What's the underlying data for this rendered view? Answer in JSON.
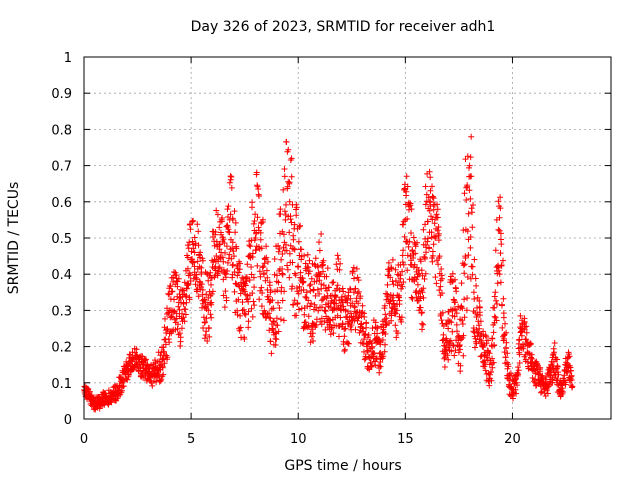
{
  "chart_data": {
    "type": "scatter",
    "title": "Day 326 of 2023, SRMTID for receiver adh1",
    "xlabel": "GPS time / hours",
    "ylabel": "SRMTID / TECUs",
    "xlim": [
      0,
      24.6
    ],
    "ylim": [
      0,
      1
    ],
    "xticks": [
      0,
      5,
      10,
      15,
      20
    ],
    "xtick_labels": [
      "0",
      "5",
      "10",
      "15",
      "20"
    ],
    "yticks": [
      0,
      0.1,
      0.2,
      0.3,
      0.4,
      0.5,
      0.6,
      0.7,
      0.8,
      0.9,
      1
    ],
    "ytick_labels": [
      "0",
      "0.1",
      "0.2",
      "0.3",
      "0.4",
      "0.5",
      "0.6",
      "0.7",
      "0.8",
      "0.9",
      "1"
    ],
    "grid": true,
    "marker": "+",
    "series": [
      {
        "name": "adh1",
        "color": "#ff0000",
        "x": [
          0.0,
          0.2,
          0.4,
          0.6,
          0.8,
          1.0,
          1.2,
          1.4,
          1.6,
          1.8,
          2.0,
          2.2,
          2.4,
          2.6,
          2.8,
          3.0,
          3.2,
          3.4,
          3.6,
          3.8,
          4.0,
          4.2,
          4.4,
          4.6,
          4.8,
          5.0,
          5.2,
          5.4,
          5.6,
          5.8,
          6.0,
          6.2,
          6.4,
          6.6,
          6.8,
          7.0,
          7.2,
          7.4,
          7.6,
          7.8,
          8.0,
          8.2,
          8.4,
          8.6,
          8.8,
          9.0,
          9.2,
          9.4,
          9.6,
          9.8,
          10.0,
          10.2,
          10.4,
          10.6,
          10.8,
          11.0,
          11.2,
          11.4,
          11.6,
          11.8,
          12.0,
          12.2,
          12.4,
          12.6,
          12.8,
          13.0,
          13.2,
          13.4,
          13.6,
          13.8,
          14.0,
          14.2,
          14.4,
          14.6,
          14.8,
          15.0,
          15.2,
          15.4,
          15.6,
          15.8,
          16.0,
          16.2,
          16.4,
          16.6,
          16.8,
          17.0,
          17.2,
          17.4,
          17.6,
          17.8,
          18.0,
          18.2,
          18.4,
          18.6,
          18.8,
          19.0,
          19.2,
          19.4,
          19.6,
          19.8,
          20.0,
          20.2,
          20.4,
          20.6,
          20.8,
          21.0,
          21.2,
          21.4,
          21.6,
          21.8,
          22.0,
          22.2,
          22.4,
          22.6,
          22.8
        ],
        "y": [
          0.08,
          0.07,
          0.05,
          0.04,
          0.05,
          0.06,
          0.06,
          0.07,
          0.08,
          0.11,
          0.13,
          0.16,
          0.17,
          0.15,
          0.14,
          0.13,
          0.12,
          0.14,
          0.15,
          0.22,
          0.3,
          0.33,
          0.31,
          0.27,
          0.36,
          0.44,
          0.48,
          0.38,
          0.33,
          0.3,
          0.42,
          0.49,
          0.46,
          0.4,
          0.55,
          0.45,
          0.37,
          0.3,
          0.33,
          0.42,
          0.5,
          0.47,
          0.4,
          0.33,
          0.25,
          0.38,
          0.44,
          0.55,
          0.6,
          0.47,
          0.42,
          0.38,
          0.35,
          0.32,
          0.34,
          0.4,
          0.37,
          0.32,
          0.3,
          0.36,
          0.3,
          0.25,
          0.28,
          0.35,
          0.32,
          0.25,
          0.2,
          0.17,
          0.22,
          0.18,
          0.24,
          0.33,
          0.38,
          0.3,
          0.36,
          0.55,
          0.49,
          0.42,
          0.4,
          0.35,
          0.62,
          0.56,
          0.5,
          0.45,
          0.18,
          0.25,
          0.3,
          0.26,
          0.22,
          0.45,
          0.7,
          0.35,
          0.27,
          0.2,
          0.17,
          0.13,
          0.35,
          0.52,
          0.28,
          0.12,
          0.08,
          0.1,
          0.25,
          0.22,
          0.18,
          0.14,
          0.11,
          0.1,
          0.09,
          0.13,
          0.17,
          0.08,
          0.1,
          0.17,
          0.09
        ],
        "spread": [
          0.01,
          0.02,
          0.02,
          0.02,
          0.02,
          0.02,
          0.02,
          0.02,
          0.03,
          0.03,
          0.03,
          0.03,
          0.03,
          0.03,
          0.03,
          0.03,
          0.03,
          0.04,
          0.05,
          0.08,
          0.1,
          0.09,
          0.1,
          0.08,
          0.1,
          0.13,
          0.1,
          0.1,
          0.1,
          0.1,
          0.13,
          0.1,
          0.12,
          0.1,
          0.15,
          0.15,
          0.11,
          0.1,
          0.1,
          0.14,
          0.22,
          0.16,
          0.12,
          0.1,
          0.1,
          0.16,
          0.2,
          0.27,
          0.2,
          0.18,
          0.15,
          0.12,
          0.14,
          0.12,
          0.12,
          0.16,
          0.12,
          0.1,
          0.08,
          0.1,
          0.12,
          0.08,
          0.08,
          0.1,
          0.1,
          0.07,
          0.06,
          0.05,
          0.08,
          0.06,
          0.06,
          0.1,
          0.1,
          0.1,
          0.12,
          0.15,
          0.14,
          0.1,
          0.1,
          0.12,
          0.16,
          0.1,
          0.12,
          0.12,
          0.05,
          0.1,
          0.12,
          0.1,
          0.1,
          0.25,
          0.3,
          0.15,
          0.08,
          0.05,
          0.06,
          0.05,
          0.15,
          0.12,
          0.1,
          0.04,
          0.03,
          0.03,
          0.06,
          0.06,
          0.05,
          0.04,
          0.04,
          0.03,
          0.03,
          0.04,
          0.05,
          0.03,
          0.02,
          0.05,
          0.02
        ]
      }
    ]
  }
}
